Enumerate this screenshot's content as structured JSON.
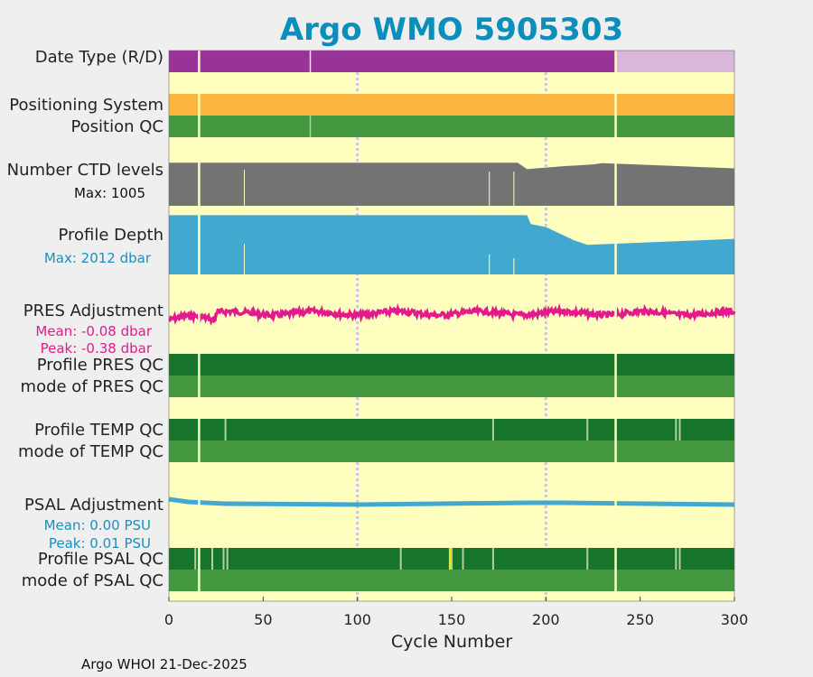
{
  "chart_data": {
    "type": "table",
    "title": "Argo WMO 5905303",
    "xlabel": "Cycle Number",
    "xlim": [
      0,
      300
    ],
    "xticks": [
      0,
      50,
      100,
      150,
      200,
      250,
      300
    ],
    "footer": "Argo WHOI 21-Dec-2025",
    "colors": {
      "title": "#0a8fbd",
      "background": "#ffffc0",
      "realtime": "#993399",
      "delayed": "#dbb6db",
      "positioning": "#fbb540",
      "qc_good": "#43983f",
      "profile_qc_good": "#16752b",
      "qc_light": "#b0d0a0",
      "ctd": "#737373",
      "depth": "#43a8cf",
      "pres_adj": "#e41a8c",
      "psal_adj": "#43a8cf",
      "vline": "#c8c8e0",
      "gap": "#ffffc0"
    },
    "rows": {
      "date_type": {
        "label": "Date Type (R/D)",
        "realtime_until": 237,
        "delayed_from": 237,
        "end": 300
      },
      "positioning_system": {
        "label": "Positioning System"
      },
      "position_qc": {
        "label": "Position QC"
      },
      "ctd_levels": {
        "label": "Number CTD levels",
        "max_label": "Max: 1005",
        "max": 1005,
        "profile": [
          [
            0,
            1000
          ],
          [
            185,
            1000
          ],
          [
            190,
            850
          ],
          [
            195,
            870
          ],
          [
            210,
            920
          ],
          [
            225,
            960
          ],
          [
            230,
            990
          ],
          [
            300,
            870
          ]
        ]
      },
      "profile_depth": {
        "label": "Profile Depth",
        "max_label": "Max: 2012 dbar",
        "max": 2012,
        "profile": [
          [
            0,
            2000
          ],
          [
            190,
            2000
          ],
          [
            192,
            1700
          ],
          [
            200,
            1600
          ],
          [
            215,
            1150
          ],
          [
            222,
            1000
          ],
          [
            300,
            1200
          ]
        ]
      },
      "pres_adjustment": {
        "label": "PRES Adjustment",
        "mean_label": "Mean: -0.08 dbar",
        "peak_label": "Peak: -0.38 dbar",
        "mean": -0.08,
        "peak": -0.38
      },
      "profile_pres_qc": {
        "label": "Profile PRES QC"
      },
      "mode_pres_qc": {
        "label": "mode of PRES QC"
      },
      "profile_temp_qc": {
        "label": "Profile TEMP QC"
      },
      "mode_temp_qc": {
        "label": "mode of TEMP QC"
      },
      "psal_adjustment": {
        "label": "PSAL Adjustment",
        "mean_label": "Mean: 0.00 PSU",
        "peak_label": "Peak: 0.01 PSU",
        "mean": 0.0,
        "peak": 0.01
      },
      "profile_psal_qc": {
        "label": "Profile PSAL QC"
      },
      "mode_psal_qc": {
        "label": "mode of PSAL QC"
      }
    },
    "missing_cycles": [
      16,
      237
    ],
    "vertical_gridlines": [
      100,
      200
    ],
    "temp_qc_marks": [
      30,
      172,
      222,
      269,
      271
    ],
    "psal_qc_marks": [
      14,
      16,
      23,
      29,
      31,
      123,
      150,
      156,
      172,
      222,
      269,
      271
    ],
    "psal_qc_flag_yellow": [
      149
    ]
  }
}
